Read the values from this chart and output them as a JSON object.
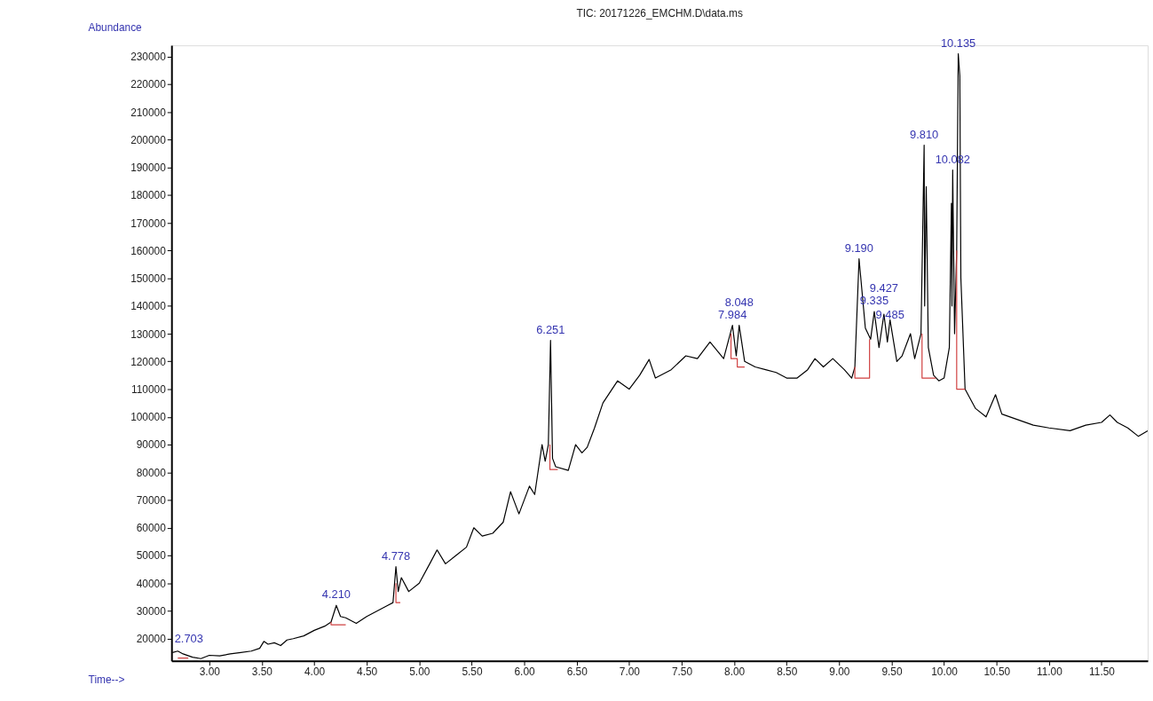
{
  "chart_data": {
    "type": "line",
    "title": "TIC: 20171226_EMCHM.D\\data.ms",
    "xlabel": "Time-->",
    "ylabel": "Abundance",
    "xlim": [
      2.64,
      11.94
    ],
    "ylim": [
      12000,
      234000
    ],
    "xticks": [
      {
        "value": 3,
        "label": "3.00"
      },
      {
        "value": 3.5,
        "label": "3.50"
      },
      {
        "value": 4,
        "label": "4.00"
      },
      {
        "value": 4.5,
        "label": "4.50"
      },
      {
        "value": 5,
        "label": "5.00"
      },
      {
        "value": 5.5,
        "label": "5.50"
      },
      {
        "value": 6,
        "label": "6.00"
      },
      {
        "value": 6.5,
        "label": "6.50"
      },
      {
        "value": 7,
        "label": "7.00"
      },
      {
        "value": 7.5,
        "label": "7.50"
      },
      {
        "value": 8,
        "label": "8.00"
      },
      {
        "value": 8.5,
        "label": "8.50"
      },
      {
        "value": 9,
        "label": "9.00"
      },
      {
        "value": 9.5,
        "label": "9.50"
      },
      {
        "value": 10,
        "label": "10.00"
      },
      {
        "value": 10.5,
        "label": "10.50"
      },
      {
        "value": 11,
        "label": "11.00"
      },
      {
        "value": 11.5,
        "label": "11.50"
      }
    ],
    "yticks": [
      20000,
      30000,
      40000,
      50000,
      60000,
      70000,
      80000,
      90000,
      100000,
      110000,
      120000,
      130000,
      140000,
      150000,
      160000,
      170000,
      180000,
      190000,
      200000,
      210000,
      220000,
      230000
    ],
    "grid": false,
    "legend": false,
    "marker": "none",
    "line_style": "solid",
    "series": [
      {
        "color": "#000000",
        "x": [
          2.65,
          2.7,
          2.75,
          2.84,
          2.92,
          3.0,
          3.1,
          3.2,
          3.3,
          3.4,
          3.48,
          3.52,
          3.56,
          3.62,
          3.68,
          3.74,
          3.8,
          3.9,
          4.0,
          4.1,
          4.16,
          4.21,
          4.25,
          4.3,
          4.4,
          4.5,
          4.6,
          4.7,
          4.75,
          4.778,
          4.8,
          4.83,
          4.9,
          5.0,
          5.1,
          5.17,
          5.25,
          5.35,
          5.45,
          5.52,
          5.6,
          5.7,
          5.8,
          5.87,
          5.95,
          6.05,
          6.1,
          6.17,
          6.2,
          6.23,
          6.251,
          6.27,
          6.3,
          6.42,
          6.49,
          6.55,
          6.6,
          6.67,
          6.75,
          6.89,
          7.0,
          7.1,
          7.19,
          7.25,
          7.4,
          7.54,
          7.65,
          7.77,
          7.9,
          7.984,
          8.02,
          8.048,
          8.1,
          8.2,
          8.3,
          8.4,
          8.5,
          8.6,
          8.7,
          8.77,
          8.85,
          8.94,
          9.05,
          9.12,
          9.15,
          9.19,
          9.25,
          9.3,
          9.335,
          9.38,
          9.427,
          9.46,
          9.485,
          9.55,
          9.6,
          9.68,
          9.72,
          9.78,
          9.81,
          9.815,
          9.83,
          9.85,
          9.9,
          9.95,
          10.0,
          10.05,
          10.07,
          10.075,
          10.082,
          10.1,
          10.12,
          10.135,
          10.15,
          10.16,
          10.2,
          10.3,
          10.4,
          10.49,
          10.55,
          10.7,
          10.85,
          11.0,
          11.2,
          11.35,
          11.5,
          11.58,
          11.65,
          11.75,
          11.85,
          11.94
        ],
        "values": [
          15000,
          15500,
          14500,
          13300,
          12800,
          14000,
          13800,
          14500,
          15000,
          15500,
          16500,
          19000,
          18000,
          18500,
          17500,
          19500,
          20000,
          21000,
          23000,
          24500,
          26000,
          32000,
          28000,
          27500,
          25500,
          28000,
          30000,
          32000,
          33000,
          46000,
          37000,
          42000,
          37000,
          40000,
          47000,
          52000,
          47000,
          50000,
          53000,
          60000,
          57000,
          58000,
          62000,
          73000,
          65000,
          75000,
          72000,
          90000,
          84000,
          90000,
          127600,
          85000,
          82000,
          80700,
          90000,
          87000,
          89000,
          96000,
          105000,
          113000,
          110000,
          115000,
          120700,
          114000,
          117000,
          122000,
          121000,
          127000,
          121000,
          133000,
          122000,
          133000,
          120000,
          118000,
          117000,
          116000,
          114000,
          114000,
          117000,
          121000,
          118000,
          121000,
          117000,
          114000,
          118000,
          157000,
          132000,
          128000,
          138000,
          125000,
          137000,
          127000,
          135000,
          120000,
          122000,
          130000,
          121000,
          130000,
          198000,
          140000,
          183000,
          125000,
          115000,
          113000,
          114000,
          125000,
          177000,
          140000,
          189000,
          130000,
          160000,
          231000,
          223000,
          150000,
          110000,
          103000,
          100000,
          108000,
          101000,
          99000,
          97000,
          96000,
          95000,
          97000,
          98000,
          100700,
          98000,
          96000,
          93000,
          95000
        ]
      },
      {
        "color": "#d04040",
        "x": [
          2.7,
          2.8,
          null,
          4.16,
          4.16,
          4.3,
          null,
          4.778,
          4.778,
          4.82,
          null,
          6.245,
          6.245,
          6.32,
          null,
          7.97,
          7.97,
          8.03,
          8.03,
          8.1,
          null,
          9.15,
          9.15,
          9.29,
          9.29,
          null,
          9.79,
          9.79,
          9.92,
          null,
          10.12,
          10.12,
          10.2
        ],
        "values": [
          13000,
          13000,
          null,
          26000,
          25000,
          25000,
          null,
          40000,
          33000,
          33000,
          null,
          90000,
          81000,
          81000,
          null,
          130000,
          121000,
          121000,
          118000,
          118000,
          null,
          118000,
          114000,
          114000,
          128000,
          null,
          130000,
          114000,
          114000,
          null,
          160000,
          110000,
          110000
        ]
      }
    ],
    "annotations": [
      {
        "text": "2.703",
        "x": 2.703,
        "y": 16000
      },
      {
        "text": "4.210",
        "x": 4.21,
        "y": 32000
      },
      {
        "text": "4.778",
        "x": 4.778,
        "y": 46000
      },
      {
        "text": "6.251",
        "x": 6.251,
        "y": 127600
      },
      {
        "text": "7.984",
        "x": 7.984,
        "y": 133000
      },
      {
        "text": "8.048",
        "x": 8.048,
        "y": 133000
      },
      {
        "text": "9.190",
        "x": 9.19,
        "y": 157000
      },
      {
        "text": "9.335",
        "x": 9.335,
        "y": 138000
      },
      {
        "text": "9.427",
        "x": 9.427,
        "y": 137000
      },
      {
        "text": "9.485",
        "x": 9.485,
        "y": 133000
      },
      {
        "text": "9.810",
        "x": 9.81,
        "y": 198000
      },
      {
        "text": "10.082",
        "x": 10.082,
        "y": 189000
      },
      {
        "text": "10.135",
        "x": 10.135,
        "y": 231000
      }
    ]
  }
}
